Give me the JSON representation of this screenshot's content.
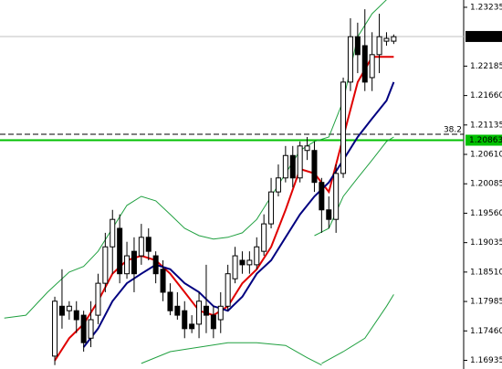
{
  "chart_data": {
    "type": "candlestick",
    "x": [
      0,
      1,
      2,
      3,
      4,
      5,
      6,
      7,
      8,
      9,
      10,
      11,
      12,
      13,
      14,
      15,
      16,
      17,
      18,
      19,
      20,
      21,
      22,
      23,
      24,
      25,
      26,
      27,
      28,
      29,
      30,
      31,
      32,
      33,
      34,
      35,
      36,
      37,
      38,
      39,
      40,
      41,
      42,
      43,
      44,
      45,
      46,
      47
    ],
    "open": [
      1.1701,
      1.179,
      1.1782,
      1.1782,
      1.1774,
      1.1733,
      1.1774,
      1.1831,
      1.1896,
      1.1929,
      1.1848,
      1.1888,
      1.188,
      1.1913,
      1.188,
      1.1856,
      1.1815,
      1.179,
      1.1782,
      1.1758,
      1.1758,
      1.179,
      1.1774,
      1.1766,
      1.179,
      1.1839,
      1.1872,
      1.1864,
      1.1864,
      1.1888,
      1.1937,
      1.1994,
      1.2019,
      1.2059,
      1.2019,
      1.2068,
      1.2068,
      1.2011,
      1.1962,
      1.1945,
      1.2027,
      1.219,
      1.2271,
      1.2255,
      1.2198,
      1.2239,
      1.2263,
      1.2263
    ],
    "high": [
      1.1807,
      1.1856,
      1.1799,
      1.1799,
      1.1782,
      1.1799,
      1.1848,
      1.1921,
      1.1962,
      1.1954,
      1.1905,
      1.1913,
      1.1937,
      1.1929,
      1.1888,
      1.1872,
      1.1831,
      1.1815,
      1.1799,
      1.1774,
      1.1815,
      1.1864,
      1.179,
      1.1815,
      1.1864,
      1.1896,
      1.1888,
      1.1888,
      1.1913,
      1.1954,
      1.2019,
      1.2043,
      1.2076,
      1.2076,
      1.2084,
      1.2092,
      1.2084,
      1.2019,
      1.1986,
      1.2043,
      1.2198,
      1.2304,
      1.2296,
      1.232,
      1.2279,
      1.2312,
      1.2279,
      1.2275
    ],
    "low": [
      1.1685,
      1.175,
      1.1766,
      1.1742,
      1.1709,
      1.1717,
      1.1758,
      1.1815,
      1.1848,
      1.1831,
      1.1839,
      1.1815,
      1.1864,
      1.1872,
      1.1831,
      1.1799,
      1.1774,
      1.1766,
      1.1733,
      1.1742,
      1.1733,
      1.1742,
      1.1733,
      1.1742,
      1.1782,
      1.1831,
      1.1848,
      1.1848,
      1.1856,
      1.188,
      1.1929,
      1.1986,
      1.2011,
      1.2002,
      1.2011,
      1.2051,
      1.1994,
      1.1921,
      1.1929,
      1.1921,
      1.2019,
      1.2174,
      1.2206,
      1.2174,
      1.2174,
      1.2206,
      1.2255,
      1.2258
    ],
    "close": [
      1.1799,
      1.1774,
      1.179,
      1.1766,
      1.1725,
      1.1766,
      1.1831,
      1.1896,
      1.1945,
      1.1848,
      1.188,
      1.1848,
      1.1913,
      1.1888,
      1.1848,
      1.1815,
      1.1782,
      1.1774,
      1.175,
      1.175,
      1.1799,
      1.1774,
      1.175,
      1.179,
      1.1848,
      1.188,
      1.1864,
      1.1872,
      1.1896,
      1.1937,
      1.1994,
      1.2019,
      1.2059,
      1.2019,
      1.2076,
      1.2076,
      1.2011,
      1.1962,
      1.1945,
      1.2027,
      1.219,
      1.2271,
      1.2239,
      1.219,
      1.2239,
      1.2271,
      1.2268,
      1.2271
    ],
    "up_color": "#ffffff",
    "down_color": "#000000",
    "edge_color": "#000000",
    "xlim": [
      -7.6,
      56.7
    ],
    "ylim": [
      1.1678,
      1.23365
    ],
    "yticks": [
      1.23235,
      1.22185,
      {
        "value": 1.2166,
        "label": "1.21660"
      },
      1.21135,
      {
        "value": 1.2061,
        "label": "1.20610"
      },
      1.20085,
      {
        "value": 1.1956,
        "label": "1.19560"
      },
      1.19035,
      {
        "value": 1.1851,
        "label": "1.18510"
      },
      1.17985,
      {
        "value": 1.1746,
        "label": "1.17460"
      },
      1.16935
    ],
    "overlays": [
      {
        "color": "#e00000",
        "width": 2,
        "x": [
          0,
          2,
          4,
          6,
          8,
          10,
          12,
          14,
          16,
          18,
          20,
          22,
          24,
          26,
          28,
          30,
          32,
          34,
          36,
          38,
          40,
          42,
          44,
          46,
          47
        ],
        "values": [
          1.1693,
          1.1733,
          1.1758,
          1.1799,
          1.1848,
          1.1872,
          1.188,
          1.1872,
          1.1848,
          1.1815,
          1.1782,
          1.1774,
          1.179,
          1.1831,
          1.1856,
          1.1896,
          1.1962,
          1.2035,
          1.2027,
          1.1994,
          1.2092,
          1.219,
          1.2235,
          1.2235,
          1.2235
        ]
      },
      {
        "color": "#000080",
        "width": 2,
        "x": [
          4,
          6,
          8,
          10,
          12,
          14,
          16,
          18,
          20,
          22,
          24,
          26,
          28,
          30,
          32,
          34,
          36,
          38,
          40,
          42,
          44,
          46,
          47
        ],
        "values": [
          1.1717,
          1.175,
          1.1799,
          1.1831,
          1.1848,
          1.1864,
          1.1856,
          1.1831,
          1.1815,
          1.179,
          1.1782,
          1.1807,
          1.1848,
          1.1872,
          1.1913,
          1.1954,
          1.1986,
          1.2011,
          1.2051,
          1.2092,
          1.2125,
          1.2157,
          1.219
        ]
      },
      {
        "color": "#20a040",
        "width": 1,
        "x": [
          -7,
          -4,
          -1,
          2,
          4,
          6,
          8,
          10,
          12,
          14,
          16,
          18,
          20,
          22,
          24,
          26,
          28,
          30,
          32,
          34,
          36,
          38,
          40,
          42,
          44,
          46
        ],
        "values": [
          1.1769,
          1.1774,
          1.1815,
          1.1851,
          1.1861,
          1.1888,
          1.1929,
          1.197,
          1.1986,
          1.1978,
          1.1954,
          1.1929,
          1.1916,
          1.191,
          1.1913,
          1.1921,
          1.1945,
          1.1986,
          1.2027,
          1.2068,
          1.2084,
          1.2092,
          1.2157,
          1.2271,
          1.2312,
          1.2337
        ]
      },
      {
        "color": "#20a040",
        "width": 1,
        "x": [
          12,
          16,
          20,
          24,
          28,
          32,
          35,
          37
        ],
        "values": [
          1.1688,
          1.1709,
          1.1717,
          1.1725,
          1.1725,
          1.172,
          1.1698,
          1.1685
        ]
      },
      {
        "color": "#20a040",
        "width": 1,
        "x": [
          36,
          38,
          40,
          42,
          44,
          46,
          47
        ],
        "values": [
          1.1916,
          1.1929,
          1.1986,
          1.2019,
          1.2051,
          1.2084,
          1.2092
        ]
      },
      {
        "color": "#20a040",
        "width": 1,
        "x": [
          37,
          40,
          43,
          46,
          47
        ],
        "values": [
          1.1688,
          1.1709,
          1.1733,
          1.179,
          1.1811
        ]
      }
    ],
    "price_lines": [
      {
        "value": 1.22714,
        "color": "#c0c0c0",
        "label_bg": "#000000",
        "label_color": "#ffffff"
      },
      {
        "value": 1.20863,
        "color": "#00c000",
        "label_bg": "#00c000",
        "label_color": "#ffffff"
      }
    ],
    "fib_level": {
      "value": 1.20969,
      "label": "38.2",
      "color": "#000000",
      "label_color": "#a00000"
    }
  }
}
